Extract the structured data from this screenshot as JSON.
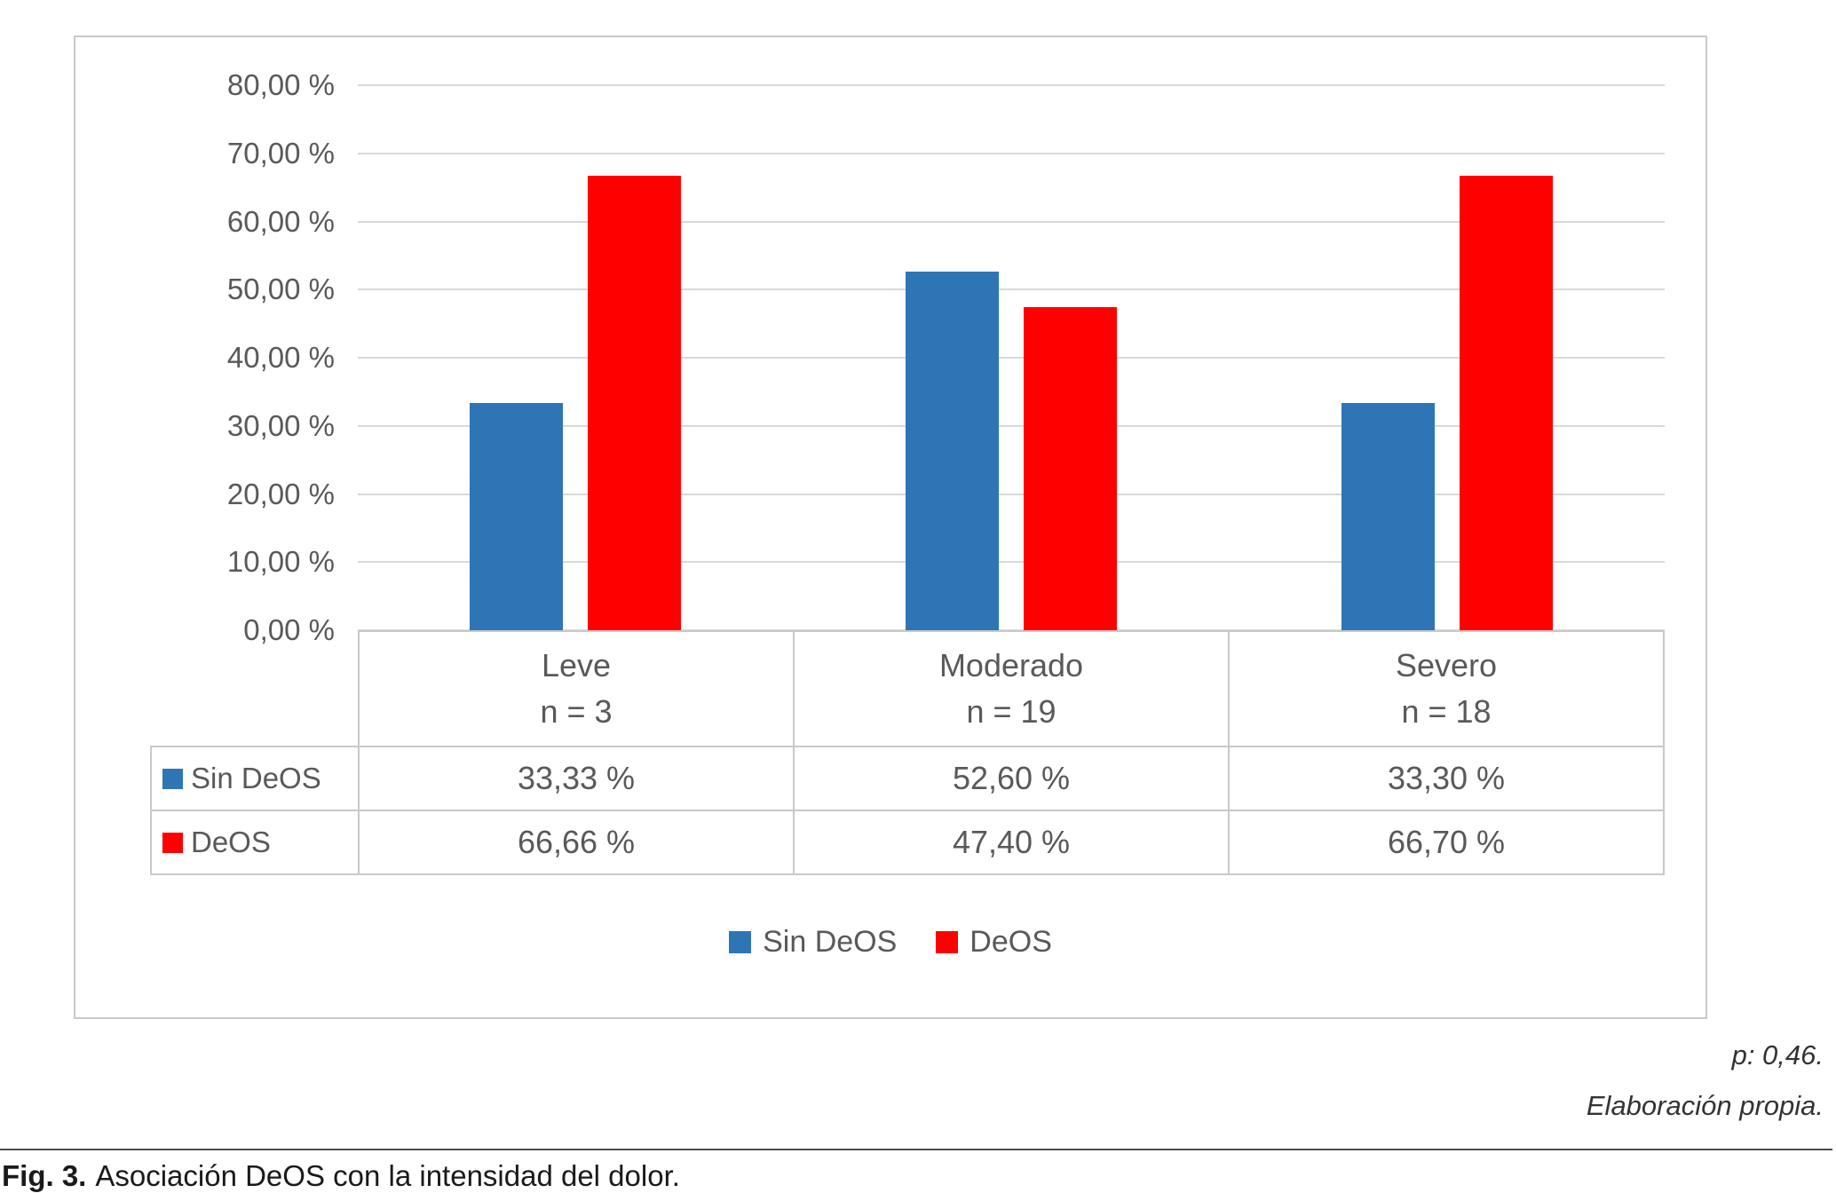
{
  "chart_data": {
    "type": "bar",
    "title": "",
    "categories": [
      {
        "label": "Leve",
        "sublabel": "n = 3"
      },
      {
        "label": "Moderado",
        "sublabel": "n = 19"
      },
      {
        "label": "Severo",
        "sublabel": "n = 18"
      }
    ],
    "series": [
      {
        "name": "Sin DeOS",
        "color": "#2e75b6",
        "values": [
          33.33,
          52.6,
          33.3
        ],
        "labels": [
          "33,33 %",
          "52,60 %",
          "33,30 %"
        ]
      },
      {
        "name": "DeOS",
        "color": "#ff0000",
        "values": [
          66.66,
          47.4,
          66.7
        ],
        "labels": [
          "66,66 %",
          "47,40 %",
          "66,70 %"
        ]
      }
    ],
    "ylim": [
      0,
      80
    ],
    "ytick_step": 10,
    "ytick_labels": [
      "0,00 %",
      "10,00 %",
      "20,00 %",
      "30,00 %",
      "40,00 %",
      "50,00 %",
      "60,00 %",
      "70,00 %",
      "80,00 %"
    ],
    "grid": true,
    "gridline_color": "#d9d9d9",
    "legend_position": "bottom",
    "data_table_shown": true
  },
  "notes": {
    "p_value": "p: 0,46.",
    "source": "Elaboración propia."
  },
  "caption": {
    "prefix": "Fig. 3.",
    "text": "Asociación DeOS con la intensidad del dolor."
  }
}
